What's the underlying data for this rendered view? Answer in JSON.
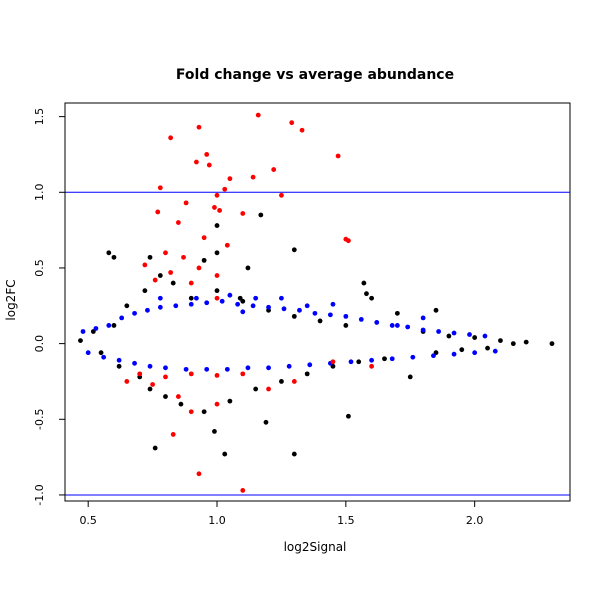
{
  "chart_data": {
    "type": "scatter",
    "title": "Fold change vs average abundance",
    "xlabel": "log2Signal",
    "ylabel": "log2FC",
    "xlim": [
      0.41,
      2.37
    ],
    "ylim": [
      -1.04,
      1.59
    ],
    "x_ticks": [
      0.5,
      1.0,
      1.5,
      2.0
    ],
    "x_tick_labels": [
      "0.5",
      "1.0",
      "1.5",
      "2.0"
    ],
    "y_ticks": [
      -1.0,
      -0.5,
      0.0,
      0.5,
      1.0,
      1.5
    ],
    "y_tick_labels": [
      "-1.0",
      "-0.5",
      "0.0",
      "0.5",
      "1.0",
      "1.5"
    ],
    "grid": false,
    "reference_lines": [
      {
        "axis": "y",
        "value": 1.0,
        "color": "#0000ff"
      },
      {
        "axis": "y",
        "value": -1.0,
        "color": "#0000ff"
      }
    ],
    "series": [
      {
        "color": "#000000",
        "points": [
          [
            0.47,
            0.02
          ],
          [
            0.52,
            0.08
          ],
          [
            0.55,
            -0.06
          ],
          [
            0.6,
            0.12
          ],
          [
            0.62,
            -0.15
          ],
          [
            0.65,
            0.25
          ],
          [
            0.7,
            -0.22
          ],
          [
            0.72,
            0.35
          ],
          [
            0.74,
            -0.3
          ],
          [
            0.78,
            0.45
          ],
          [
            0.8,
            -0.35
          ],
          [
            0.83,
            0.4
          ],
          [
            0.86,
            -0.4
          ],
          [
            0.9,
            0.3
          ],
          [
            0.95,
            -0.45
          ],
          [
            1.0,
            0.35
          ],
          [
            1.05,
            -0.38
          ],
          [
            1.1,
            0.28
          ],
          [
            1.15,
            -0.3
          ],
          [
            1.2,
            0.22
          ],
          [
            1.25,
            -0.25
          ],
          [
            1.3,
            0.18
          ],
          [
            1.35,
            -0.2
          ],
          [
            1.4,
            0.15
          ],
          [
            1.45,
            -0.15
          ],
          [
            1.5,
            0.12
          ],
          [
            1.55,
            -0.12
          ],
          [
            1.6,
            0.3
          ],
          [
            1.65,
            -0.1
          ],
          [
            1.7,
            0.2
          ],
          [
            1.75,
            -0.22
          ],
          [
            1.8,
            0.08
          ],
          [
            1.85,
            -0.06
          ],
          [
            1.9,
            0.05
          ],
          [
            1.95,
            -0.04
          ],
          [
            2.0,
            0.04
          ],
          [
            2.05,
            -0.03
          ],
          [
            2.1,
            0.02
          ],
          [
            2.15,
            0.0
          ],
          [
            2.2,
            0.01
          ],
          [
            2.3,
            0.0
          ],
          [
            0.76,
            -0.69
          ],
          [
            1.03,
            -0.73
          ],
          [
            1.3,
            -0.73
          ],
          [
            0.99,
            -0.58
          ],
          [
            1.19,
            -0.52
          ],
          [
            1.51,
            -0.48
          ],
          [
            0.6,
            0.57
          ],
          [
            0.74,
            0.57
          ],
          [
            0.95,
            0.55
          ],
          [
            0.58,
            0.6
          ],
          [
            1.0,
            0.6
          ],
          [
            1.3,
            0.62
          ],
          [
            1.17,
            0.85
          ],
          [
            1.0,
            0.78
          ],
          [
            1.12,
            0.5
          ],
          [
            1.09,
            0.3
          ],
          [
            1.57,
            0.4
          ],
          [
            1.58,
            0.33
          ],
          [
            1.85,
            0.22
          ]
        ]
      },
      {
        "color": "#0000ff",
        "points": [
          [
            0.48,
            0.08
          ],
          [
            0.53,
            0.1
          ],
          [
            0.58,
            0.12
          ],
          [
            0.63,
            0.17
          ],
          [
            0.68,
            0.2
          ],
          [
            0.73,
            0.22
          ],
          [
            0.78,
            0.24
          ],
          [
            0.84,
            0.25
          ],
          [
            0.9,
            0.26
          ],
          [
            0.96,
            0.27
          ],
          [
            1.02,
            0.28
          ],
          [
            1.08,
            0.26
          ],
          [
            1.14,
            0.25
          ],
          [
            1.2,
            0.24
          ],
          [
            1.26,
            0.23
          ],
          [
            1.32,
            0.22
          ],
          [
            1.38,
            0.2
          ],
          [
            1.44,
            0.19
          ],
          [
            1.5,
            0.18
          ],
          [
            1.56,
            0.16
          ],
          [
            1.62,
            0.14
          ],
          [
            1.68,
            0.12
          ],
          [
            1.74,
            0.11
          ],
          [
            1.8,
            0.09
          ],
          [
            1.86,
            0.08
          ],
          [
            1.92,
            0.07
          ],
          [
            1.98,
            0.06
          ],
          [
            2.04,
            0.05
          ],
          [
            0.5,
            -0.06
          ],
          [
            0.56,
            -0.09
          ],
          [
            0.62,
            -0.11
          ],
          [
            0.68,
            -0.13
          ],
          [
            0.74,
            -0.15
          ],
          [
            0.8,
            -0.16
          ],
          [
            0.88,
            -0.17
          ],
          [
            0.96,
            -0.17
          ],
          [
            1.04,
            -0.17
          ],
          [
            1.12,
            -0.16
          ],
          [
            1.2,
            -0.16
          ],
          [
            1.28,
            -0.15
          ],
          [
            1.36,
            -0.14
          ],
          [
            1.44,
            -0.13
          ],
          [
            1.52,
            -0.12
          ],
          [
            1.6,
            -0.11
          ],
          [
            1.68,
            -0.1
          ],
          [
            1.76,
            -0.09
          ],
          [
            1.84,
            -0.08
          ],
          [
            1.92,
            -0.07
          ],
          [
            2.0,
            -0.06
          ],
          [
            2.08,
            -0.05
          ],
          [
            1.1,
            0.21
          ],
          [
            1.35,
            0.25
          ],
          [
            1.45,
            0.26
          ],
          [
            1.7,
            0.12
          ],
          [
            1.8,
            0.17
          ],
          [
            0.78,
            0.3
          ],
          [
            0.92,
            0.3
          ],
          [
            1.05,
            0.32
          ],
          [
            1.15,
            0.3
          ],
          [
            1.25,
            0.3
          ]
        ]
      },
      {
        "color": "#ff0000",
        "points": [
          [
            0.82,
            1.36
          ],
          [
            0.93,
            1.43
          ],
          [
            1.16,
            1.51
          ],
          [
            1.29,
            1.46
          ],
          [
            1.33,
            1.41
          ],
          [
            1.47,
            1.24
          ],
          [
            0.96,
            1.25
          ],
          [
            0.92,
            1.2
          ],
          [
            0.97,
            1.18
          ],
          [
            1.14,
            1.1
          ],
          [
            1.22,
            1.15
          ],
          [
            1.05,
            1.09
          ],
          [
            1.03,
            1.02
          ],
          [
            0.78,
            1.03
          ],
          [
            1.0,
            0.98
          ],
          [
            1.25,
            0.98
          ],
          [
            0.88,
            0.93
          ],
          [
            0.99,
            0.9
          ],
          [
            1.01,
            0.88
          ],
          [
            0.77,
            0.87
          ],
          [
            1.1,
            0.86
          ],
          [
            0.85,
            0.8
          ],
          [
            0.95,
            0.7
          ],
          [
            1.04,
            0.65
          ],
          [
            0.8,
            0.6
          ],
          [
            0.87,
            0.57
          ],
          [
            1.0,
            0.45
          ],
          [
            0.93,
            0.5
          ],
          [
            0.72,
            0.52
          ],
          [
            1.5,
            0.69
          ],
          [
            1.51,
            0.68
          ],
          [
            0.76,
            0.42
          ],
          [
            0.82,
            0.47
          ],
          [
            0.9,
            0.4
          ],
          [
            1.0,
            0.3
          ],
          [
            0.7,
            -0.2
          ],
          [
            0.8,
            -0.22
          ],
          [
            0.9,
            -0.2
          ],
          [
            1.0,
            -0.21
          ],
          [
            1.1,
            -0.2
          ],
          [
            0.85,
            -0.35
          ],
          [
            1.2,
            -0.3
          ],
          [
            1.3,
            -0.25
          ],
          [
            0.9,
            -0.45
          ],
          [
            1.0,
            -0.4
          ],
          [
            0.83,
            -0.6
          ],
          [
            0.93,
            -0.86
          ],
          [
            1.1,
            -0.97
          ],
          [
            0.65,
            -0.25
          ],
          [
            1.45,
            -0.12
          ],
          [
            0.75,
            -0.27
          ],
          [
            1.6,
            -0.15
          ]
        ]
      }
    ]
  }
}
